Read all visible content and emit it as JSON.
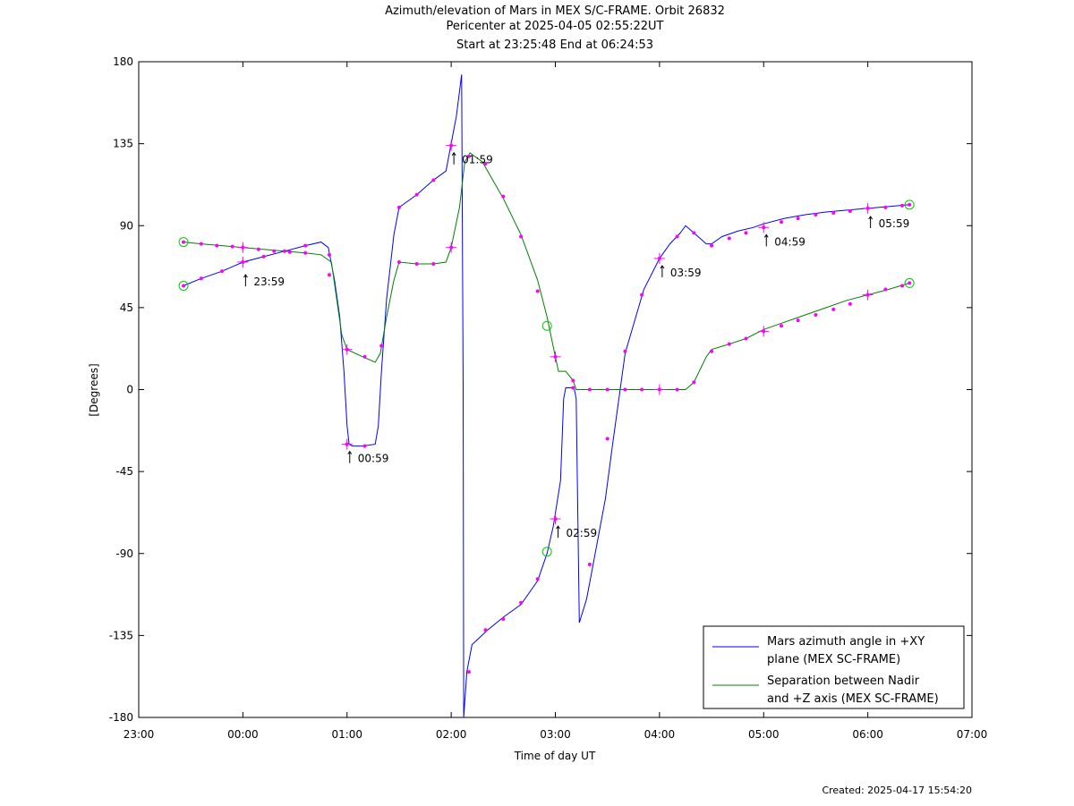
{
  "chart_data": {
    "type": "line",
    "title": "Azimuth/elevation of Mars in MEX S/C-FRAME.  Orbit 26832",
    "subtitle1": "Pericenter at 2025-04-05 02:55:22UT",
    "subtitle2": "Start at 23:25:48 End at 06:24:53",
    "xlabel": "Time of day UT",
    "ylabel": "[Degrees]",
    "xlim_hours": [
      23,
      31
    ],
    "ylim": [
      -180,
      180
    ],
    "xtick_labels": [
      "23:00",
      "00:00",
      "01:00",
      "02:00",
      "03:00",
      "04:00",
      "05:00",
      "06:00",
      "07:00"
    ],
    "ytick_labels": [
      "180",
      "135",
      "90",
      "45",
      "0",
      "-45",
      "-90",
      "-135",
      "-180"
    ],
    "ytick_values": [
      180,
      135,
      90,
      45,
      0,
      -45,
      -90,
      -135,
      -180
    ],
    "legend_position": "bottom-right",
    "colors": {
      "azimuth": "#0000ff",
      "separation": "#008000",
      "markers": "#ff00ff",
      "endpoints": "#00cc00"
    },
    "series": [
      {
        "name": "Mars azimuth angle in +XY plane (MEX SC-FRAME)",
        "legend_line1": "Mars azimuth angle in +XY",
        "legend_line2": "plane (MEX SC-FRAME)",
        "points": [
          [
            23.43,
            57
          ],
          [
            23.6,
            61
          ],
          [
            23.8,
            65
          ],
          [
            24.0,
            70
          ],
          [
            24.2,
            73
          ],
          [
            24.4,
            76
          ],
          [
            24.6,
            79
          ],
          [
            24.75,
            81
          ],
          [
            24.82,
            78
          ],
          [
            24.88,
            60
          ],
          [
            24.93,
            40
          ],
          [
            24.97,
            10
          ],
          [
            25.0,
            -20
          ],
          [
            25.02,
            -30
          ],
          [
            25.05,
            -31
          ],
          [
            25.15,
            -31
          ],
          [
            25.27,
            -30
          ],
          [
            25.3,
            -20
          ],
          [
            25.33,
            10
          ],
          [
            25.38,
            50
          ],
          [
            25.45,
            85
          ],
          [
            25.5,
            100
          ],
          [
            25.67,
            107
          ],
          [
            25.83,
            115
          ],
          [
            25.95,
            120
          ],
          [
            26.0,
            135
          ],
          [
            26.05,
            150
          ],
          [
            26.1,
            173
          ],
          [
            26.115,
            0
          ],
          [
            26.12,
            -180
          ],
          [
            26.15,
            -155
          ],
          [
            26.2,
            -140
          ],
          [
            26.35,
            -132
          ],
          [
            26.5,
            -125
          ],
          [
            26.67,
            -118
          ],
          [
            26.83,
            -105
          ],
          [
            26.92,
            -90
          ],
          [
            26.98,
            -75
          ],
          [
            27.05,
            -50
          ],
          [
            27.08,
            -5
          ],
          [
            27.1,
            1
          ],
          [
            27.18,
            1
          ],
          [
            27.2,
            -5
          ],
          [
            27.23,
            -128
          ],
          [
            27.3,
            -115
          ],
          [
            27.35,
            -100
          ],
          [
            27.48,
            -60
          ],
          [
            27.55,
            -30
          ],
          [
            27.67,
            20
          ],
          [
            27.85,
            55
          ],
          [
            28.0,
            72
          ],
          [
            28.1,
            80
          ],
          [
            28.2,
            86
          ],
          [
            28.25,
            90
          ],
          [
            28.35,
            85
          ],
          [
            28.45,
            80
          ],
          [
            28.5,
            80
          ],
          [
            28.6,
            84
          ],
          [
            28.75,
            87
          ],
          [
            28.9,
            89
          ],
          [
            29.0,
            91
          ],
          [
            29.2,
            94
          ],
          [
            29.4,
            96
          ],
          [
            29.6,
            97.5
          ],
          [
            29.8,
            98.5
          ],
          [
            30.0,
            99.5
          ],
          [
            30.2,
            100.5
          ],
          [
            30.4,
            101.5
          ]
        ],
        "markers": [
          [
            23.43,
            57
          ],
          [
            23.6,
            61
          ],
          [
            23.8,
            65
          ],
          [
            24.0,
            70
          ],
          [
            24.2,
            73
          ],
          [
            24.4,
            76
          ],
          [
            24.6,
            79
          ],
          [
            24.83,
            63
          ],
          [
            25.0,
            -30
          ],
          [
            25.17,
            -31
          ],
          [
            25.5,
            100
          ],
          [
            25.67,
            107
          ],
          [
            25.83,
            115
          ],
          [
            26.0,
            134
          ],
          [
            26.17,
            -155
          ],
          [
            26.33,
            -132
          ],
          [
            26.5,
            -126
          ],
          [
            26.67,
            -117
          ],
          [
            26.83,
            -104
          ],
          [
            27.0,
            -71
          ],
          [
            27.17,
            1
          ],
          [
            27.33,
            -96
          ],
          [
            27.5,
            -27
          ],
          [
            27.67,
            21
          ],
          [
            27.83,
            52
          ],
          [
            28.0,
            72
          ],
          [
            28.17,
            84
          ],
          [
            28.33,
            86
          ],
          [
            28.5,
            79
          ],
          [
            28.67,
            83
          ],
          [
            28.83,
            86
          ],
          [
            29.0,
            89
          ],
          [
            29.17,
            92
          ],
          [
            29.33,
            94
          ],
          [
            29.5,
            96
          ],
          [
            29.67,
            97
          ],
          [
            29.83,
            98
          ],
          [
            30.0,
            99.5
          ],
          [
            30.17,
            100
          ],
          [
            30.33,
            101
          ],
          [
            30.4,
            101.5
          ]
        ],
        "crosses": [
          [
            24.0,
            70
          ],
          [
            25.0,
            -30
          ],
          [
            26.0,
            134
          ],
          [
            27.0,
            -71
          ],
          [
            28.0,
            72
          ],
          [
            29.0,
            89
          ],
          [
            30.0,
            99.5
          ]
        ],
        "endpoints": [
          [
            23.43,
            57
          ],
          [
            26.92,
            -89
          ],
          [
            30.4,
            101.5
          ]
        ]
      },
      {
        "name": "Separation between Nadir and +Z axis (MEX SC-FRAME)",
        "legend_line1": "Separation between Nadir",
        "legend_line2": "and +Z axis (MEX SC-FRAME)",
        "points": [
          [
            23.43,
            81
          ],
          [
            23.6,
            80
          ],
          [
            23.8,
            79
          ],
          [
            24.0,
            78
          ],
          [
            24.2,
            77
          ],
          [
            24.4,
            76
          ],
          [
            24.6,
            75
          ],
          [
            24.75,
            74
          ],
          [
            24.85,
            70
          ],
          [
            24.9,
            50
          ],
          [
            24.95,
            30
          ],
          [
            25.0,
            22
          ],
          [
            25.15,
            18
          ],
          [
            25.27,
            15
          ],
          [
            25.32,
            20
          ],
          [
            25.38,
            40
          ],
          [
            25.45,
            60
          ],
          [
            25.5,
            70
          ],
          [
            25.67,
            69
          ],
          [
            25.83,
            69
          ],
          [
            25.95,
            70
          ],
          [
            26.0,
            78
          ],
          [
            26.08,
            100
          ],
          [
            26.13,
            125
          ],
          [
            26.18,
            130
          ],
          [
            26.3,
            125
          ],
          [
            26.5,
            105
          ],
          [
            26.67,
            85
          ],
          [
            26.83,
            60
          ],
          [
            26.92,
            40
          ],
          [
            27.0,
            18
          ],
          [
            27.03,
            10
          ],
          [
            27.1,
            10
          ],
          [
            27.17,
            5
          ],
          [
            27.2,
            0
          ],
          [
            27.5,
            0
          ],
          [
            28.0,
            0
          ],
          [
            28.25,
            0
          ],
          [
            28.33,
            4
          ],
          [
            28.45,
            18
          ],
          [
            28.5,
            22
          ],
          [
            28.67,
            25
          ],
          [
            28.83,
            28
          ],
          [
            29.0,
            33
          ],
          [
            29.2,
            37
          ],
          [
            29.4,
            41
          ],
          [
            29.6,
            45
          ],
          [
            29.8,
            49
          ],
          [
            30.0,
            52
          ],
          [
            30.2,
            55
          ],
          [
            30.4,
            58.5
          ]
        ],
        "markers": [
          [
            23.43,
            81
          ],
          [
            23.6,
            80
          ],
          [
            23.75,
            79
          ],
          [
            23.9,
            78.5
          ],
          [
            24.0,
            78
          ],
          [
            24.15,
            77
          ],
          [
            24.3,
            76
          ],
          [
            24.45,
            75.5
          ],
          [
            24.6,
            75
          ],
          [
            24.83,
            74
          ],
          [
            25.0,
            22
          ],
          [
            25.17,
            18
          ],
          [
            25.33,
            24
          ],
          [
            25.5,
            70
          ],
          [
            25.67,
            69
          ],
          [
            25.83,
            69
          ],
          [
            26.0,
            78
          ],
          [
            26.17,
            128
          ],
          [
            26.33,
            124
          ],
          [
            26.5,
            106
          ],
          [
            26.67,
            84
          ],
          [
            26.83,
            54
          ],
          [
            27.0,
            18
          ],
          [
            27.17,
            5
          ],
          [
            27.33,
            0
          ],
          [
            27.5,
            0
          ],
          [
            27.67,
            0
          ],
          [
            27.83,
            0
          ],
          [
            28.0,
            0
          ],
          [
            28.17,
            0
          ],
          [
            28.33,
            4
          ],
          [
            28.5,
            21
          ],
          [
            28.67,
            25
          ],
          [
            28.83,
            28
          ],
          [
            29.0,
            32
          ],
          [
            29.17,
            35
          ],
          [
            29.33,
            38
          ],
          [
            29.5,
            41
          ],
          [
            29.67,
            44
          ],
          [
            29.83,
            47
          ],
          [
            30.0,
            52
          ],
          [
            30.17,
            55
          ],
          [
            30.33,
            57
          ],
          [
            30.4,
            58.5
          ]
        ],
        "crosses": [
          [
            24.0,
            78
          ],
          [
            25.0,
            22
          ],
          [
            26.0,
            78
          ],
          [
            27.0,
            18
          ],
          [
            28.0,
            0
          ],
          [
            29.0,
            32
          ],
          [
            30.0,
            52
          ]
        ],
        "endpoints": [
          [
            23.43,
            81
          ],
          [
            26.92,
            35
          ],
          [
            30.4,
            58.5
          ]
        ]
      }
    ],
    "annotations": [
      {
        "label": "23:59",
        "x": 24.0,
        "y": 65
      },
      {
        "label": "00:59",
        "x": 25.0,
        "y": -32
      },
      {
        "label": "01:59",
        "x": 26.0,
        "y": 132
      },
      {
        "label": "02:59",
        "x": 27.0,
        "y": -73
      },
      {
        "label": "03:59",
        "x": 28.0,
        "y": 70
      },
      {
        "label": "04:59",
        "x": 29.0,
        "y": 87
      },
      {
        "label": "05:59",
        "x": 30.0,
        "y": 97
      }
    ]
  },
  "footer": {
    "created": "Created: 2025-04-17 15:54:20"
  }
}
